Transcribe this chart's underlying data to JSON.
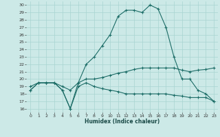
{
  "xlabel": "Humidex (Indice chaleur)",
  "bg_color": "#cce9e7",
  "grid_color": "#a8d4d1",
  "line_color": "#1a6b65",
  "xlim": [
    -0.5,
    23.5
  ],
  "ylim": [
    15.5,
    30.5
  ],
  "yticks": [
    16,
    17,
    18,
    19,
    20,
    21,
    22,
    23,
    24,
    25,
    26,
    27,
    28,
    29,
    30
  ],
  "xticks": [
    0,
    1,
    2,
    3,
    4,
    5,
    6,
    7,
    8,
    9,
    10,
    11,
    12,
    13,
    14,
    15,
    16,
    17,
    18,
    19,
    20,
    21,
    22,
    23
  ],
  "line1_x": [
    0,
    1,
    2,
    3,
    4,
    5,
    6,
    7,
    8,
    9,
    10,
    11,
    12,
    13,
    14,
    15,
    16,
    17,
    18,
    19,
    20,
    21,
    22,
    23
  ],
  "line1_y": [
    18.5,
    19.5,
    19.5,
    19.5,
    18.5,
    16.0,
    19.5,
    22.0,
    23.0,
    24.5,
    26.0,
    28.5,
    29.3,
    29.3,
    29.0,
    30.0,
    29.5,
    27.0,
    23.0,
    20.0,
    20.0,
    18.5,
    18.0,
    17.0
  ],
  "line2_x": [
    0,
    1,
    2,
    3,
    4,
    5,
    6,
    7,
    8,
    9,
    10,
    11,
    12,
    13,
    14,
    15,
    16,
    17,
    18,
    19,
    20,
    21,
    22,
    23
  ],
  "line2_y": [
    19.0,
    19.5,
    19.5,
    19.5,
    19.0,
    18.5,
    19.5,
    20.0,
    20.0,
    20.2,
    20.5,
    20.8,
    21.0,
    21.3,
    21.5,
    21.5,
    21.5,
    21.5,
    21.5,
    21.2,
    21.0,
    21.2,
    21.3,
    21.5
  ],
  "line3_x": [
    0,
    1,
    2,
    3,
    4,
    5,
    6,
    7,
    8,
    9,
    10,
    11,
    12,
    13,
    14,
    15,
    16,
    17,
    18,
    19,
    20,
    21,
    22,
    23
  ],
  "line3_y": [
    18.5,
    19.5,
    19.5,
    19.5,
    18.5,
    16.0,
    19.0,
    19.5,
    19.0,
    18.7,
    18.5,
    18.3,
    18.0,
    18.0,
    18.0,
    18.0,
    18.0,
    18.0,
    17.8,
    17.7,
    17.5,
    17.5,
    17.5,
    17.0
  ]
}
